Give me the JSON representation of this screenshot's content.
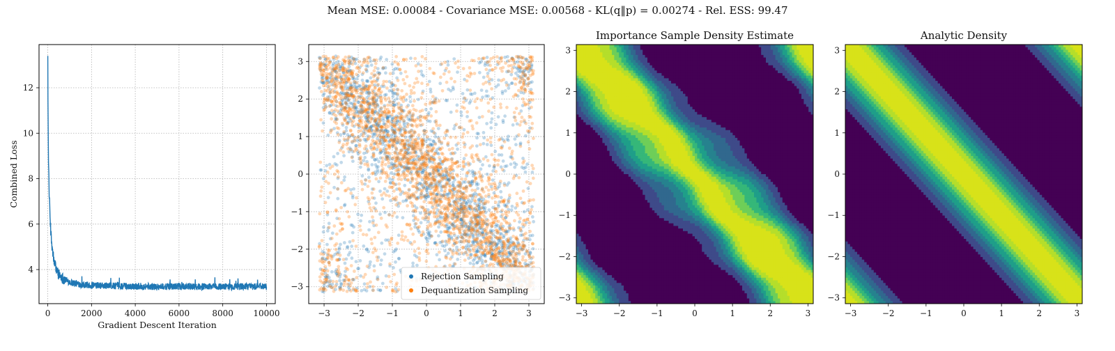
{
  "figure": {
    "suptitle": "Mean MSE: 0.00084 - Covariance MSE: 0.00568 - KL(q‖p) = 0.00274 - Rel. ESS: 99.47"
  },
  "colors": {
    "loss_line": "#1f77b4",
    "rejection": "#1f77b4",
    "dequantization": "#ff7f0e",
    "viridis": [
      "#440154",
      "#482777",
      "#3e4a89",
      "#31688e",
      "#26828e",
      "#1f9e89",
      "#35b779",
      "#6ece58",
      "#b5de2b",
      "#d8e219"
    ]
  },
  "chart_data": [
    {
      "type": "line",
      "title": "",
      "xlabel": "Gradient Descent Iteration",
      "ylabel": "Combined Loss",
      "xlim": [
        -400,
        10400
      ],
      "ylim": [
        2.5,
        13.9
      ],
      "xticks": [
        0,
        2000,
        4000,
        6000,
        8000,
        10000
      ],
      "yticks": [
        4,
        6,
        8,
        10,
        12
      ],
      "grid": true,
      "series": [
        {
          "description": "loss curve: sharp initial drop then noisy plateau",
          "points": [
            [
              0,
              13.4
            ],
            [
              10,
              11.0
            ],
            [
              30,
              9.0
            ],
            [
              60,
              7.5
            ],
            [
              100,
              6.4
            ],
            [
              150,
              5.5
            ],
            [
              200,
              4.9
            ],
            [
              300,
              4.3
            ],
            [
              400,
              4.0
            ],
            [
              500,
              3.8
            ],
            [
              700,
              3.6
            ],
            [
              1000,
              3.45
            ],
            [
              1500,
              3.35
            ],
            [
              2000,
              3.3
            ],
            [
              3000,
              3.28
            ],
            [
              5000,
              3.25
            ],
            [
              7000,
              3.25
            ],
            [
              10000,
              3.25
            ]
          ],
          "noise_band": 0.3
        }
      ]
    },
    {
      "type": "scatter",
      "title": "",
      "xlim": [
        -3.45,
        3.45
      ],
      "ylim": [
        -3.45,
        3.45
      ],
      "xticks": [
        -3,
        -2,
        -1,
        0,
        1,
        2,
        3
      ],
      "yticks": [
        -3,
        -2,
        -1,
        0,
        1,
        2,
        3
      ],
      "grid": true,
      "legend_position": "bottom-right",
      "series": [
        {
          "name": "Rejection Sampling"
        },
        {
          "name": "Dequantization Sampling"
        }
      ],
      "sample_domain": [
        -3.14,
        3.14
      ],
      "density_description": "samples concentrated along diagonal bands y = -x and y = -x ± 2π"
    },
    {
      "type": "heatmap",
      "title": "Importance Sample Density Estimate",
      "xlim": [
        -3.14,
        3.14
      ],
      "ylim": [
        -3.14,
        3.14
      ],
      "xticks": [
        -3,
        -2,
        -1,
        0,
        1,
        2,
        3
      ],
      "yticks": [
        -3,
        -2,
        -1,
        0,
        1,
        2,
        3
      ],
      "levels": 9,
      "band_width": 0.55
    },
    {
      "type": "heatmap",
      "title": "Analytic Density",
      "xlim": [
        -3.14,
        3.14
      ],
      "ylim": [
        -3.14,
        3.14
      ],
      "xticks": [
        -3,
        -2,
        -1,
        0,
        1,
        2,
        3
      ],
      "yticks": [
        -3,
        -2,
        -1,
        0,
        1,
        2,
        3
      ],
      "levels": 9,
      "band_width": 0.5
    }
  ]
}
